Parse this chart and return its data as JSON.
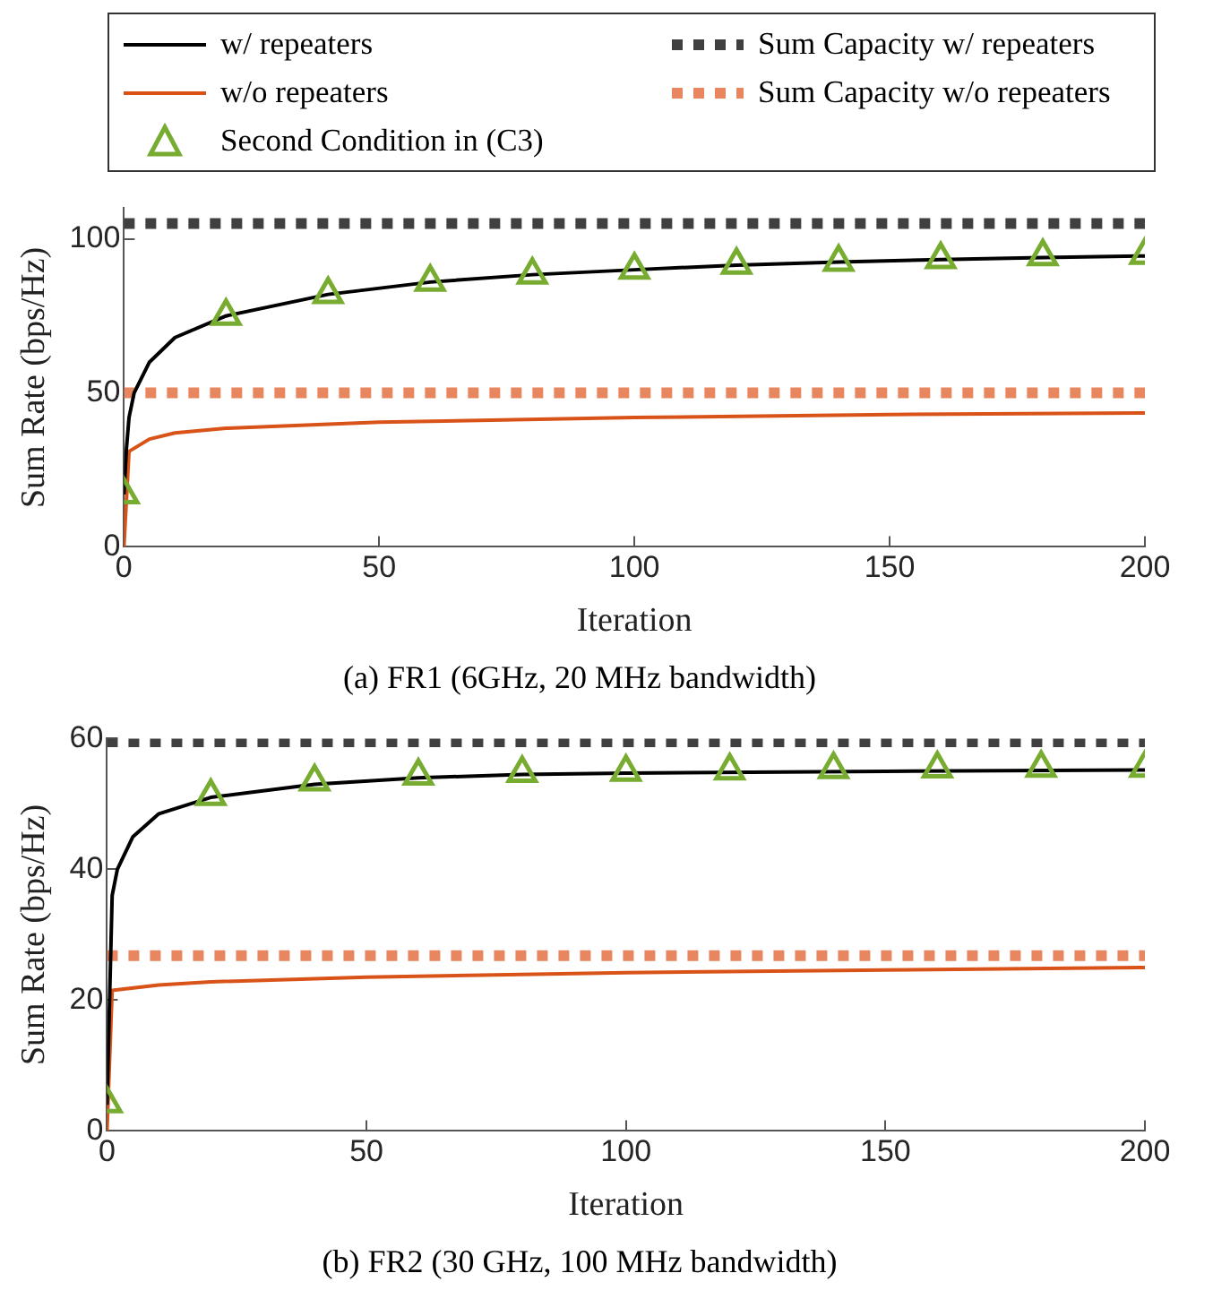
{
  "chart_data": [
    {
      "type": "line",
      "title": "(a) FR1 (6GHz, 20 MHz bandwidth)",
      "xlabel": "Iteration",
      "ylabel": "Sum Rate (bps/Hz)",
      "xlim": [
        0,
        200
      ],
      "xticks": [
        0,
        50,
        100,
        150,
        200
      ],
      "ylim": [
        0,
        110
      ],
      "yticks": [
        0,
        50,
        100
      ],
      "grid": false,
      "legend": "top",
      "series": [
        {
          "name": "w/ repeaters",
          "type": "line",
          "color": "#000000",
          "line_style": "solid",
          "marker": "none",
          "x": [
            0,
            0.5,
            1,
            2,
            5,
            10,
            20,
            40,
            60,
            80,
            100,
            120,
            140,
            160,
            180,
            200
          ],
          "values": [
            17,
            32,
            42,
            50,
            60,
            68,
            75,
            82,
            86,
            88.4,
            90,
            91.5,
            92.5,
            93.3,
            94,
            94.5
          ]
        },
        {
          "name": "w/o repeaters",
          "type": "line",
          "color": "#d95319",
          "line_style": "solid",
          "marker": "none",
          "x": [
            0,
            1,
            5,
            10,
            20,
            50,
            100,
            150,
            200
          ],
          "values": [
            0,
            31,
            35,
            37,
            38.5,
            40.5,
            42,
            43,
            43.5
          ]
        },
        {
          "name": "Second Condition in (C3)",
          "type": "scatter",
          "color": "#77ac30",
          "marker": "triangle",
          "x": [
            0,
            20,
            40,
            60,
            80,
            100,
            120,
            140,
            160,
            180,
            200
          ],
          "values": [
            17,
            75,
            82,
            86,
            88.4,
            90,
            91.6,
            92.5,
            93.4,
            94.3,
            94.8
          ]
        },
        {
          "name": "Sum Capacity w/ repeaters",
          "type": "line",
          "color": "#404040",
          "line_style": "dotted",
          "marker": "none",
          "x": [
            0,
            200
          ],
          "values": [
            105,
            105
          ]
        },
        {
          "name": "Sum Capacity w/o repeaters",
          "type": "line",
          "color": "#e8875f",
          "line_style": "dotted",
          "marker": "none",
          "x": [
            0,
            200
          ],
          "values": [
            50,
            50
          ]
        }
      ]
    },
    {
      "type": "line",
      "title": "(b) FR2 (30 GHz, 100 MHz bandwidth)",
      "xlabel": "Iteration",
      "ylabel": "Sum Rate (bps/Hz)",
      "xlim": [
        0,
        200
      ],
      "xticks": [
        0,
        50,
        100,
        150,
        200
      ],
      "ylim": [
        0,
        60
      ],
      "yticks": [
        0,
        20,
        40,
        60
      ],
      "grid": false,
      "series": [
        {
          "type": "line",
          "color": "#000000",
          "line_style": "solid",
          "marker": "none",
          "x": [
            0,
            0.5,
            1,
            2,
            5,
            10,
            20,
            40,
            60,
            80,
            100,
            150,
            200
          ],
          "values": [
            4,
            20,
            36,
            40,
            45,
            48.5,
            51,
            53,
            54,
            54.5,
            54.7,
            55,
            55.2
          ]
        },
        {
          "type": "line",
          "color": "#d95319",
          "line_style": "solid",
          "marker": "none",
          "x": [
            0,
            1,
            10,
            20,
            50,
            100,
            150,
            200
          ],
          "values": [
            0,
            21.5,
            22.3,
            22.8,
            23.5,
            24.2,
            24.6,
            25
          ]
        },
        {
          "type": "scatter",
          "color": "#77ac30",
          "marker": "triangle",
          "x": [
            0,
            20,
            40,
            60,
            80,
            100,
            120,
            140,
            160,
            180,
            200
          ],
          "values": [
            4.2,
            51.2,
            53.4,
            54.3,
            54.7,
            54.9,
            55.1,
            55.3,
            55.4,
            55.5,
            55.5
          ]
        },
        {
          "type": "line",
          "color": "#404040",
          "line_style": "dotted",
          "marker": "none",
          "x": [
            0,
            200
          ],
          "values": [
            59.5,
            59.5
          ]
        },
        {
          "type": "line",
          "color": "#e8875f",
          "line_style": "dotted",
          "marker": "none",
          "x": [
            0,
            200
          ],
          "values": [
            26.8,
            26.8
          ]
        }
      ]
    }
  ]
}
